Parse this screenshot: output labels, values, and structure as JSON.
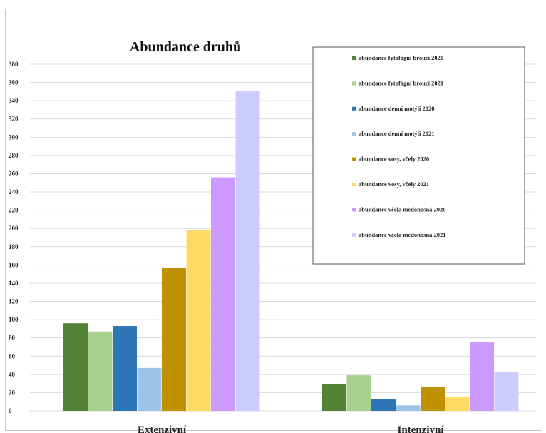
{
  "chart_data": {
    "type": "bar",
    "title": "Abundance druhů",
    "categories": [
      "Extenzivní",
      "Intenzivní"
    ],
    "ylim": [
      0,
      380
    ],
    "yticks": [
      0,
      20,
      40,
      60,
      80,
      100,
      120,
      140,
      160,
      180,
      200,
      220,
      240,
      260,
      280,
      300,
      320,
      340,
      360,
      380
    ],
    "grid": true,
    "legend_position": "top-right",
    "series": [
      {
        "name": "abundance fytofágní brouci 2020",
        "color": "#538135",
        "values": [
          96,
          29
        ]
      },
      {
        "name": "abundance fytofágní brouci 2021",
        "color": "#a9d18e",
        "values": [
          87,
          39
        ]
      },
      {
        "name": "abundance denní motýli 2020",
        "color": "#2e75b6",
        "values": [
          93,
          13
        ]
      },
      {
        "name": "abundance denní motýli 2021",
        "color": "#9dc3e6",
        "values": [
          47,
          6
        ]
      },
      {
        "name": "abundance vosy, včely 2020",
        "color": "#bf9000",
        "values": [
          157,
          26
        ]
      },
      {
        "name": "abundance vosy, včely 2021",
        "color": "#ffd966",
        "values": [
          198,
          15
        ]
      },
      {
        "name": "abundance včela medonosná 2020",
        "color": "#cc99ff",
        "values": [
          256,
          75
        ]
      },
      {
        "name": "abundance včela medonosná 2021",
        "color": "#ccccff",
        "values": [
          351,
          43
        ]
      }
    ]
  }
}
